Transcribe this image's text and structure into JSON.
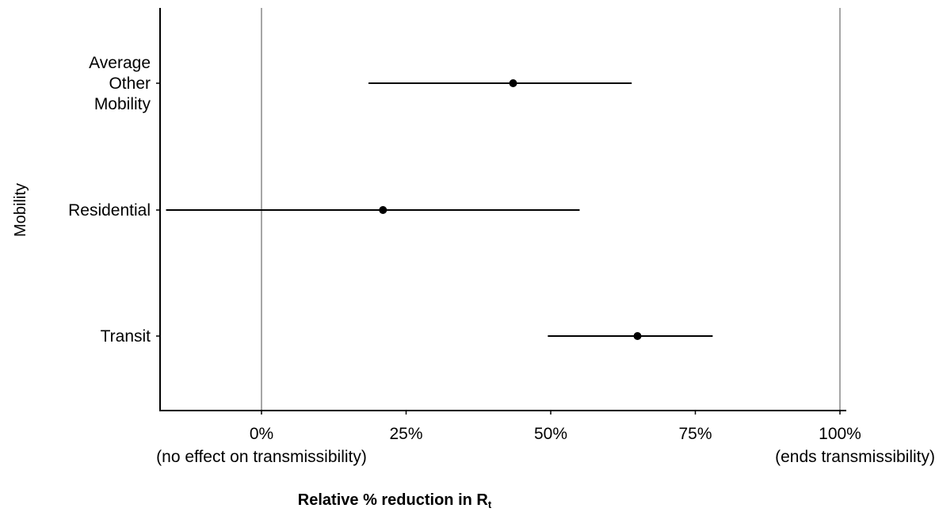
{
  "chart_data": {
    "type": "scatter",
    "subtype": "forest-plot",
    "ylabel": "Mobility",
    "xlabel_main": "Relative % reduction in  R",
    "xlabel_sub": "t",
    "xlim": [
      -0.175,
      1.01
    ],
    "x_ticks": [
      {
        "value": 0.0,
        "line1": "0%",
        "line2": "(no effect on transmissibility)"
      },
      {
        "value": 0.25,
        "line1": "25%",
        "line2": ""
      },
      {
        "value": 0.5,
        "line1": "50%",
        "line2": ""
      },
      {
        "value": 0.75,
        "line1": "75%",
        "line2": ""
      },
      {
        "value": 1.0,
        "line1": "100%",
        "line2": "(ends transmissibility)"
      }
    ],
    "reference_lines": [
      0.0,
      1.0
    ],
    "categories": [
      {
        "label": [
          "Average",
          "Other",
          "Mobility"
        ],
        "estimate": 0.435,
        "lower": 0.185,
        "upper": 0.64
      },
      {
        "label": [
          "Residential"
        ],
        "estimate": 0.21,
        "lower": -0.165,
        "upper": 0.55
      },
      {
        "label": [
          "Transit"
        ],
        "estimate": 0.65,
        "lower": 0.495,
        "upper": 0.78
      }
    ],
    "colors": {
      "axis": "#000000",
      "reference_line": "#a6a6a6",
      "interval": "#000000",
      "point": "#000000"
    },
    "grid": false,
    "legend": "none"
  }
}
